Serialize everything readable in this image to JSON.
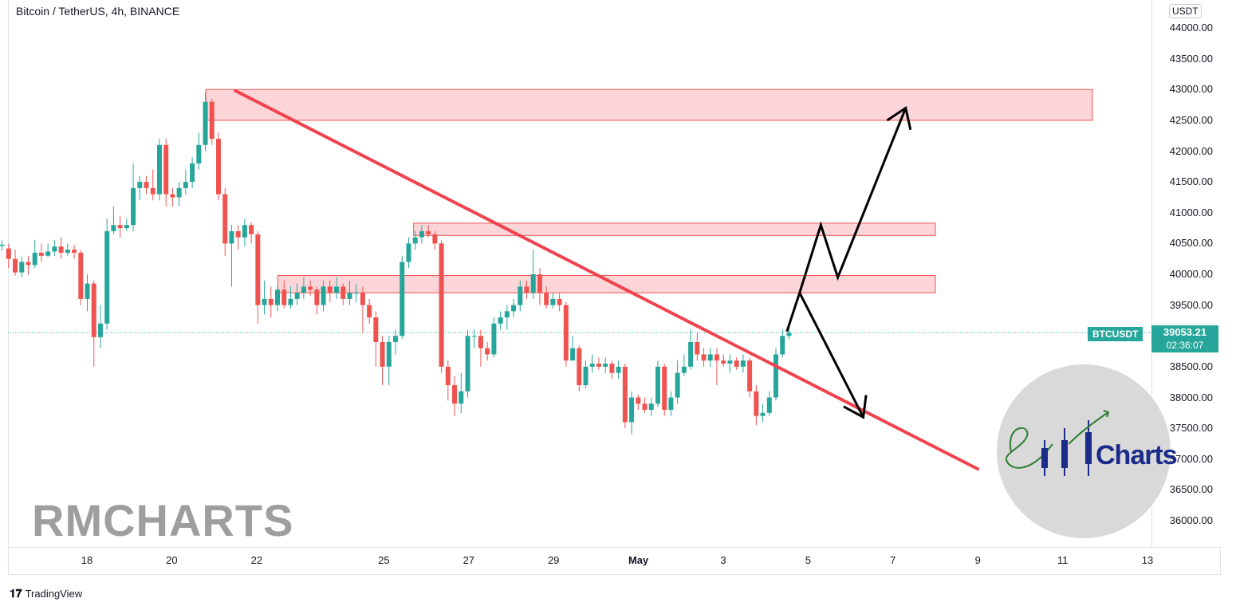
{
  "header": {
    "title": "Bitcoin / TetherUS, 4h, BINANCE"
  },
  "price_axis": {
    "currency_badge": "USDT"
  },
  "last_price": {
    "symbol": "BTCUSDT",
    "price": "39053.21",
    "countdown": "02:36:07"
  },
  "watermark": {
    "text": "RMCHARTS"
  },
  "logo": {
    "text": "Charts",
    "script_mark": "RM"
  },
  "footer": {
    "brand": "TradingView",
    "brand_icon": "tradingview-logo-icon"
  },
  "colors": {
    "up": "#26a69a",
    "down": "#ef5350",
    "trendline": "#f0434e",
    "zone_fill": "#fbd5d8",
    "zone_border": "#ef5350"
  },
  "chart_data": {
    "type": "candlestick",
    "title": "Bitcoin / TetherUS, 4h, BINANCE",
    "y_axis": {
      "ticks": [
        "44000.00",
        "43500.00",
        "43000.00",
        "42500.00",
        "42000.00",
        "41500.00",
        "41000.00",
        "40500.00",
        "40000.00",
        "39500.00",
        "39000.00",
        "38500.00",
        "38000.00",
        "37500.00",
        "37000.00",
        "36500.00",
        "36000.00"
      ],
      "range": [
        35600,
        44500
      ]
    },
    "x_axis": {
      "ticks": [
        {
          "label": "18",
          "day": 18
        },
        {
          "label": "20",
          "day": 20
        },
        {
          "label": "22",
          "day": 22
        },
        {
          "label": "25",
          "day": 25
        },
        {
          "label": "27",
          "day": 27
        },
        {
          "label": "29",
          "day": 29
        },
        {
          "label": "May",
          "day": 31,
          "bold": true
        },
        {
          "label": "3",
          "day": 33
        },
        {
          "label": "5",
          "day": 35
        },
        {
          "label": "7",
          "day": 37
        },
        {
          "label": "9",
          "day": 39
        },
        {
          "label": "11",
          "day": 41
        },
        {
          "label": "13",
          "day": 43
        }
      ],
      "unit": "day (April days; May continues as 31=May 1)"
    },
    "candles": [
      [
        40460,
        40480,
        40550,
        40380
      ],
      [
        40420,
        40250,
        40500,
        40100
      ],
      [
        40250,
        40030,
        40400,
        39980
      ],
      [
        40030,
        40200,
        40290,
        39950
      ],
      [
        40200,
        40150,
        40300,
        40000
      ],
      [
        40150,
        40350,
        40560,
        40100
      ],
      [
        40350,
        40300,
        40500,
        40200
      ],
      [
        40300,
        40370,
        40500,
        40280
      ],
      [
        40370,
        40450,
        40550,
        40300
      ],
      [
        40450,
        40350,
        40600,
        40250
      ],
      [
        40350,
        40400,
        40500,
        40300
      ],
      [
        40400,
        40350,
        40480,
        40250
      ],
      [
        40350,
        39600,
        40400,
        39500
      ],
      [
        39600,
        39850,
        40000,
        39400
      ],
      [
        39850,
        38980,
        39900,
        38500
      ],
      [
        38980,
        39200,
        39500,
        38800
      ],
      [
        39200,
        40700,
        40900,
        39100
      ],
      [
        40700,
        40800,
        41100,
        40650
      ],
      [
        40800,
        40750,
        40950,
        40600
      ],
      [
        40750,
        40800,
        40900,
        40700
      ],
      [
        40800,
        41400,
        41800,
        40700
      ],
      [
        41400,
        41500,
        41600,
        41200
      ],
      [
        41500,
        41400,
        41600,
        41300
      ],
      [
        41400,
        41300,
        41700,
        41200
      ],
      [
        41300,
        42100,
        42200,
        41200
      ],
      [
        42100,
        41300,
        42200,
        41100
      ],
      [
        41300,
        41250,
        41400,
        41100
      ],
      [
        41250,
        41400,
        41500,
        41100
      ],
      [
        41400,
        41500,
        41700,
        41300
      ],
      [
        41500,
        41800,
        41900,
        41400
      ],
      [
        41800,
        42100,
        42300,
        41700
      ],
      [
        42100,
        42800,
        42950,
        42000
      ],
      [
        42800,
        42200,
        42850,
        42100
      ],
      [
        42200,
        41300,
        42300,
        41200
      ],
      [
        41300,
        40500,
        41400,
        40300
      ],
      [
        40500,
        40700,
        40800,
        39800
      ],
      [
        40700,
        40600,
        40800,
        40400
      ],
      [
        40600,
        40800,
        40900,
        40450
      ],
      [
        40800,
        40650,
        40850,
        40500
      ],
      [
        40650,
        39500,
        40700,
        39200
      ],
      [
        39500,
        39600,
        39900,
        39350
      ],
      [
        39600,
        39500,
        39800,
        39300
      ],
      [
        39500,
        39750,
        39800,
        39400
      ],
      [
        39750,
        39500,
        39900,
        39450
      ],
      [
        39500,
        39600,
        39800,
        39450
      ],
      [
        39600,
        39700,
        39850,
        39500
      ],
      [
        39700,
        39800,
        39950,
        39600
      ],
      [
        39800,
        39750,
        39900,
        39650
      ],
      [
        39750,
        39500,
        39800,
        39350
      ],
      [
        39500,
        39800,
        39900,
        39400
      ],
      [
        39800,
        39700,
        39900,
        39550
      ],
      [
        39700,
        39800,
        39950,
        39600
      ],
      [
        39800,
        39600,
        39850,
        39500
      ],
      [
        39600,
        39700,
        39900,
        39500
      ],
      [
        39700,
        39700,
        39850,
        39550
      ],
      [
        39700,
        39500,
        39800,
        39050
      ],
      [
        39500,
        39300,
        39600,
        39200
      ],
      [
        39300,
        38900,
        39400,
        38500
      ],
      [
        38900,
        38500,
        39000,
        38200
      ],
      [
        38500,
        38900,
        39000,
        38200
      ],
      [
        38900,
        39000,
        39100,
        38700
      ],
      [
        39000,
        40200,
        40300,
        38950
      ],
      [
        40200,
        40500,
        40600,
        40100
      ],
      [
        40500,
        40600,
        40700,
        40400
      ],
      [
        40600,
        40700,
        40800,
        40500
      ],
      [
        40700,
        40650,
        40800,
        40600
      ],
      [
        40650,
        40500,
        40700,
        40400
      ],
      [
        40500,
        38500,
        40550,
        38400
      ],
      [
        38500,
        38200,
        38600,
        37950
      ],
      [
        38200,
        37900,
        38350,
        37700
      ],
      [
        37900,
        38100,
        38400,
        37750
      ],
      [
        38100,
        39000,
        39100,
        38000
      ],
      [
        39000,
        39000,
        39100,
        38800
      ],
      [
        39000,
        38800,
        39100,
        38500
      ],
      [
        38800,
        38700,
        38900,
        38600
      ],
      [
        38700,
        39200,
        39300,
        38650
      ],
      [
        39200,
        39300,
        39400,
        39100
      ],
      [
        39300,
        39400,
        39500,
        39100
      ],
      [
        39400,
        39500,
        39600,
        39300
      ],
      [
        39500,
        39800,
        39900,
        39400
      ],
      [
        39800,
        39700,
        39900,
        39600
      ],
      [
        39700,
        40000,
        40400,
        39600
      ],
      [
        40000,
        39700,
        40100,
        39500
      ],
      [
        39700,
        39500,
        39800,
        39450
      ],
      [
        39500,
        39600,
        39700,
        39450
      ],
      [
        39600,
        39500,
        39700,
        39400
      ],
      [
        39500,
        38600,
        39550,
        38500
      ],
      [
        38600,
        38800,
        39000,
        38600
      ],
      [
        38800,
        38200,
        38850,
        38100
      ],
      [
        38200,
        38500,
        38600,
        38150
      ],
      [
        38500,
        38550,
        38700,
        38400
      ],
      [
        38550,
        38500,
        38650,
        38450
      ],
      [
        38500,
        38550,
        38650,
        38400
      ],
      [
        38550,
        38400,
        38600,
        38300
      ],
      [
        38400,
        38500,
        38600,
        38300
      ],
      [
        38500,
        37600,
        38550,
        37500
      ],
      [
        37600,
        38000,
        38100,
        37400
      ],
      [
        38000,
        37900,
        38050,
        37800
      ],
      [
        37900,
        37800,
        38000,
        37750
      ],
      [
        37800,
        37900,
        38000,
        37700
      ],
      [
        37900,
        38500,
        38600,
        37850
      ],
      [
        38500,
        37800,
        38550,
        37700
      ],
      [
        37800,
        38000,
        38100,
        37700
      ],
      [
        38000,
        38400,
        38600,
        37900
      ],
      [
        38400,
        38500,
        38700,
        38350
      ],
      [
        38500,
        38900,
        39100,
        38450
      ],
      [
        38900,
        38700,
        39050,
        38600
      ],
      [
        38700,
        38600,
        38800,
        38500
      ],
      [
        38600,
        38700,
        38800,
        38500
      ],
      [
        38700,
        38600,
        38800,
        38200
      ],
      [
        38600,
        38550,
        38700,
        38500
      ],
      [
        38550,
        38600,
        38700,
        38400
      ],
      [
        38600,
        38500,
        38650,
        38450
      ],
      [
        38500,
        38600,
        38700,
        38400
      ],
      [
        38600,
        38100,
        38650,
        38000
      ],
      [
        38100,
        37700,
        38200,
        37550
      ],
      [
        37700,
        37750,
        37900,
        37600
      ],
      [
        37750,
        38000,
        38100,
        37700
      ],
      [
        38000,
        38700,
        38800,
        37950
      ],
      [
        38700,
        39000,
        39100,
        38650
      ],
      [
        39000,
        39053,
        39150,
        38950
      ]
    ],
    "zones": [
      {
        "from_day": 20.8,
        "to_day": 41.7,
        "low": 42500,
        "high": 43000
      },
      {
        "from_day": 25.7,
        "to_day": 38.0,
        "low": 40630,
        "high": 40830
      },
      {
        "from_day": 22.5,
        "to_day": 38.0,
        "low": 39700,
        "high": 39980
      }
    ],
    "trendline": {
      "from": [
        21.5,
        42980
      ],
      "to": [
        39.0,
        36840
      ]
    },
    "projection_paths": [
      [
        [
          34.5,
          39070
        ],
        [
          34.8,
          39700
        ],
        [
          35.3,
          40800
        ],
        [
          35.7,
          39950
        ],
        [
          37.3,
          42700
        ]
      ],
      [
        [
          34.8,
          39700
        ],
        [
          36.3,
          37680
        ]
      ]
    ],
    "last_price_line": 39053.21
  }
}
